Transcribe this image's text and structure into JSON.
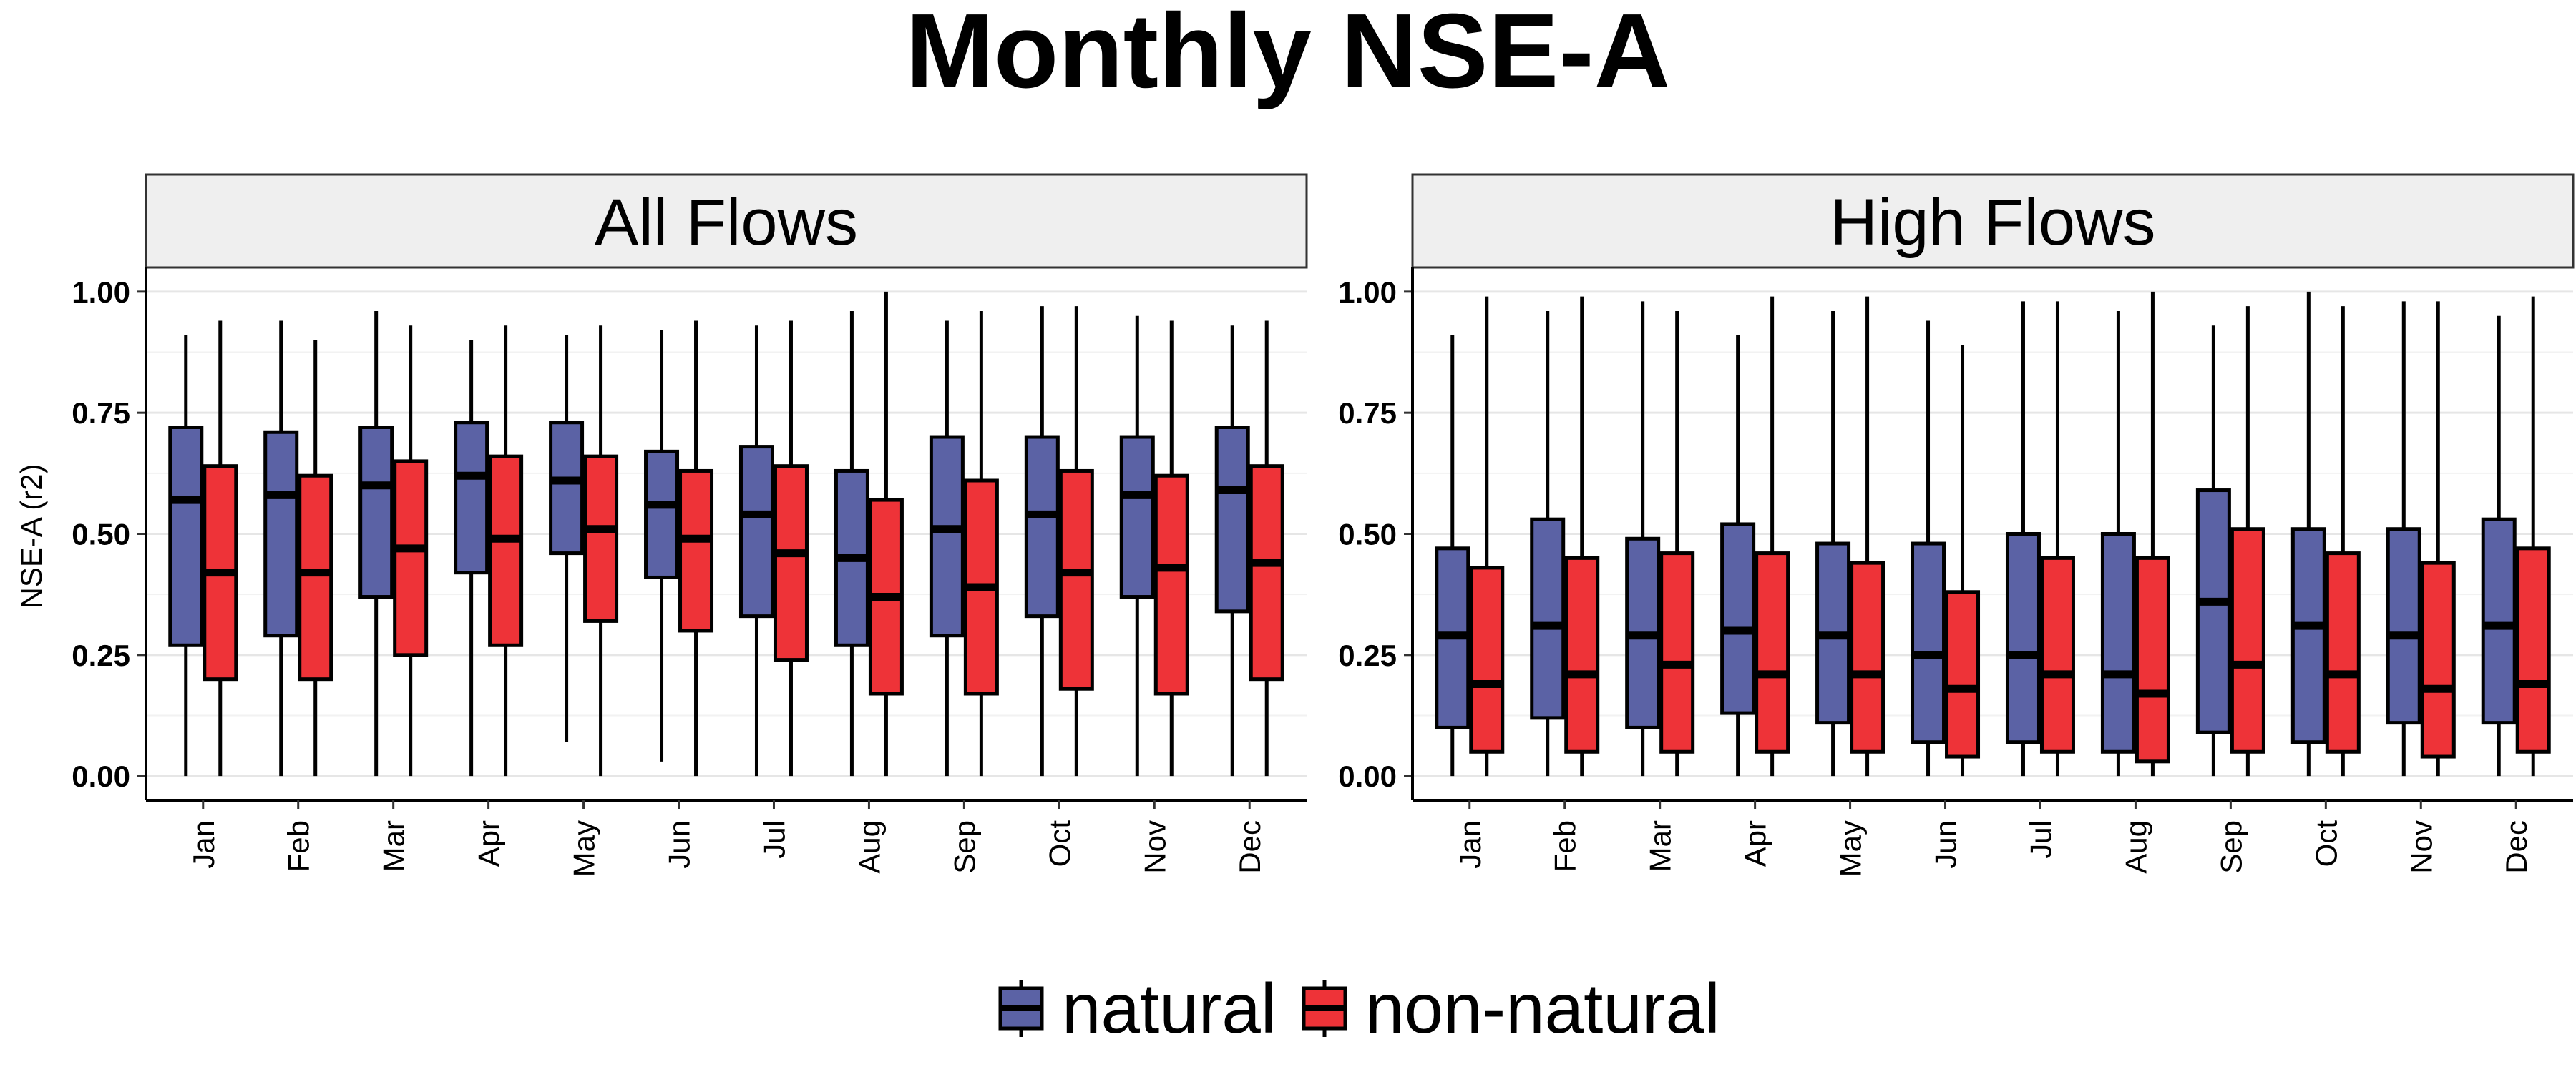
{
  "chart_data": {
    "type": "boxplot",
    "title": "Monthly NSE-A",
    "ylabel": "NSE-A (r2)",
    "xlabel": "",
    "ylim": [
      -0.05,
      1.05
    ],
    "yticks": [
      0.0,
      0.25,
      0.5,
      0.75,
      1.0
    ],
    "ytick_labels": [
      "0.00",
      "0.25",
      "0.50",
      "0.75",
      "1.00"
    ],
    "grid": true,
    "legend_position": "bottom",
    "categories": [
      "Jan",
      "Feb",
      "Mar",
      "Apr",
      "May",
      "Jun",
      "Jul",
      "Aug",
      "Sep",
      "Oct",
      "Nov",
      "Dec"
    ],
    "series_names": [
      "natural",
      "non-natural"
    ],
    "colors": {
      "natural": "#5b62a5",
      "non-natural": "#ee3338"
    },
    "panels": [
      {
        "label": "All Flows",
        "series": [
          {
            "name": "natural",
            "boxes": [
              {
                "min": 0.0,
                "q1": 0.27,
                "median": 0.57,
                "q3": 0.72,
                "max": 0.91
              },
              {
                "min": 0.0,
                "q1": 0.29,
                "median": 0.58,
                "q3": 0.71,
                "max": 0.94
              },
              {
                "min": 0.0,
                "q1": 0.37,
                "median": 0.6,
                "q3": 0.72,
                "max": 0.96
              },
              {
                "min": 0.0,
                "q1": 0.42,
                "median": 0.62,
                "q3": 0.73,
                "max": 0.9
              },
              {
                "min": 0.07,
                "q1": 0.46,
                "median": 0.61,
                "q3": 0.73,
                "max": 0.91
              },
              {
                "min": 0.03,
                "q1": 0.41,
                "median": 0.56,
                "q3": 0.67,
                "max": 0.92
              },
              {
                "min": 0.0,
                "q1": 0.33,
                "median": 0.54,
                "q3": 0.68,
                "max": 0.93
              },
              {
                "min": 0.0,
                "q1": 0.27,
                "median": 0.45,
                "q3": 0.63,
                "max": 0.96
              },
              {
                "min": 0.0,
                "q1": 0.29,
                "median": 0.51,
                "q3": 0.7,
                "max": 0.94
              },
              {
                "min": 0.0,
                "q1": 0.33,
                "median": 0.54,
                "q3": 0.7,
                "max": 0.97
              },
              {
                "min": 0.0,
                "q1": 0.37,
                "median": 0.58,
                "q3": 0.7,
                "max": 0.95
              },
              {
                "min": 0.0,
                "q1": 0.34,
                "median": 0.59,
                "q3": 0.72,
                "max": 0.93
              }
            ]
          },
          {
            "name": "non-natural",
            "boxes": [
              {
                "min": 0.0,
                "q1": 0.2,
                "median": 0.42,
                "q3": 0.64,
                "max": 0.94
              },
              {
                "min": 0.0,
                "q1": 0.2,
                "median": 0.42,
                "q3": 0.62,
                "max": 0.9
              },
              {
                "min": 0.0,
                "q1": 0.25,
                "median": 0.47,
                "q3": 0.65,
                "max": 0.93
              },
              {
                "min": 0.0,
                "q1": 0.27,
                "median": 0.49,
                "q3": 0.66,
                "max": 0.93
              },
              {
                "min": 0.0,
                "q1": 0.32,
                "median": 0.51,
                "q3": 0.66,
                "max": 0.93
              },
              {
                "min": 0.0,
                "q1": 0.3,
                "median": 0.49,
                "q3": 0.63,
                "max": 0.94
              },
              {
                "min": 0.0,
                "q1": 0.24,
                "median": 0.46,
                "q3": 0.64,
                "max": 0.94
              },
              {
                "min": 0.0,
                "q1": 0.17,
                "median": 0.37,
                "q3": 0.57,
                "max": 1.0
              },
              {
                "min": 0.0,
                "q1": 0.17,
                "median": 0.39,
                "q3": 0.61,
                "max": 0.96
              },
              {
                "min": 0.0,
                "q1": 0.18,
                "median": 0.42,
                "q3": 0.63,
                "max": 0.97
              },
              {
                "min": 0.0,
                "q1": 0.17,
                "median": 0.43,
                "q3": 0.62,
                "max": 0.94
              },
              {
                "min": 0.0,
                "q1": 0.2,
                "median": 0.44,
                "q3": 0.64,
                "max": 0.94
              }
            ]
          }
        ]
      },
      {
        "label": "High Flows",
        "series": [
          {
            "name": "natural",
            "boxes": [
              {
                "min": 0.0,
                "q1": 0.1,
                "median": 0.29,
                "q3": 0.47,
                "max": 0.91
              },
              {
                "min": 0.0,
                "q1": 0.12,
                "median": 0.31,
                "q3": 0.53,
                "max": 0.96
              },
              {
                "min": 0.0,
                "q1": 0.1,
                "median": 0.29,
                "q3": 0.49,
                "max": 0.98
              },
              {
                "min": 0.0,
                "q1": 0.13,
                "median": 0.3,
                "q3": 0.52,
                "max": 0.91
              },
              {
                "min": 0.0,
                "q1": 0.11,
                "median": 0.29,
                "q3": 0.48,
                "max": 0.96
              },
              {
                "min": 0.0,
                "q1": 0.07,
                "median": 0.25,
                "q3": 0.48,
                "max": 0.94
              },
              {
                "min": 0.0,
                "q1": 0.07,
                "median": 0.25,
                "q3": 0.5,
                "max": 0.98
              },
              {
                "min": 0.0,
                "q1": 0.05,
                "median": 0.21,
                "q3": 0.5,
                "max": 0.96
              },
              {
                "min": 0.0,
                "q1": 0.09,
                "median": 0.36,
                "q3": 0.59,
                "max": 0.93
              },
              {
                "min": 0.0,
                "q1": 0.07,
                "median": 0.31,
                "q3": 0.51,
                "max": 1.0
              },
              {
                "min": 0.0,
                "q1": 0.11,
                "median": 0.29,
                "q3": 0.51,
                "max": 0.98
              },
              {
                "min": 0.0,
                "q1": 0.11,
                "median": 0.31,
                "q3": 0.53,
                "max": 0.95
              }
            ]
          },
          {
            "name": "non-natural",
            "boxes": [
              {
                "min": 0.0,
                "q1": 0.05,
                "median": 0.19,
                "q3": 0.43,
                "max": 0.99
              },
              {
                "min": 0.0,
                "q1": 0.05,
                "median": 0.21,
                "q3": 0.45,
                "max": 0.99
              },
              {
                "min": 0.0,
                "q1": 0.05,
                "median": 0.23,
                "q3": 0.46,
                "max": 0.96
              },
              {
                "min": 0.0,
                "q1": 0.05,
                "median": 0.21,
                "q3": 0.46,
                "max": 0.99
              },
              {
                "min": 0.0,
                "q1": 0.05,
                "median": 0.21,
                "q3": 0.44,
                "max": 0.99
              },
              {
                "min": 0.0,
                "q1": 0.04,
                "median": 0.18,
                "q3": 0.38,
                "max": 0.89
              },
              {
                "min": 0.0,
                "q1": 0.05,
                "median": 0.21,
                "q3": 0.45,
                "max": 0.98
              },
              {
                "min": 0.0,
                "q1": 0.03,
                "median": 0.17,
                "q3": 0.45,
                "max": 1.0
              },
              {
                "min": 0.0,
                "q1": 0.05,
                "median": 0.23,
                "q3": 0.51,
                "max": 0.97
              },
              {
                "min": 0.0,
                "q1": 0.05,
                "median": 0.21,
                "q3": 0.46,
                "max": 0.97
              },
              {
                "min": 0.0,
                "q1": 0.04,
                "median": 0.18,
                "q3": 0.44,
                "max": 0.98
              },
              {
                "min": 0.0,
                "q1": 0.05,
                "median": 0.19,
                "q3": 0.47,
                "max": 0.99
              }
            ]
          }
        ]
      }
    ]
  }
}
